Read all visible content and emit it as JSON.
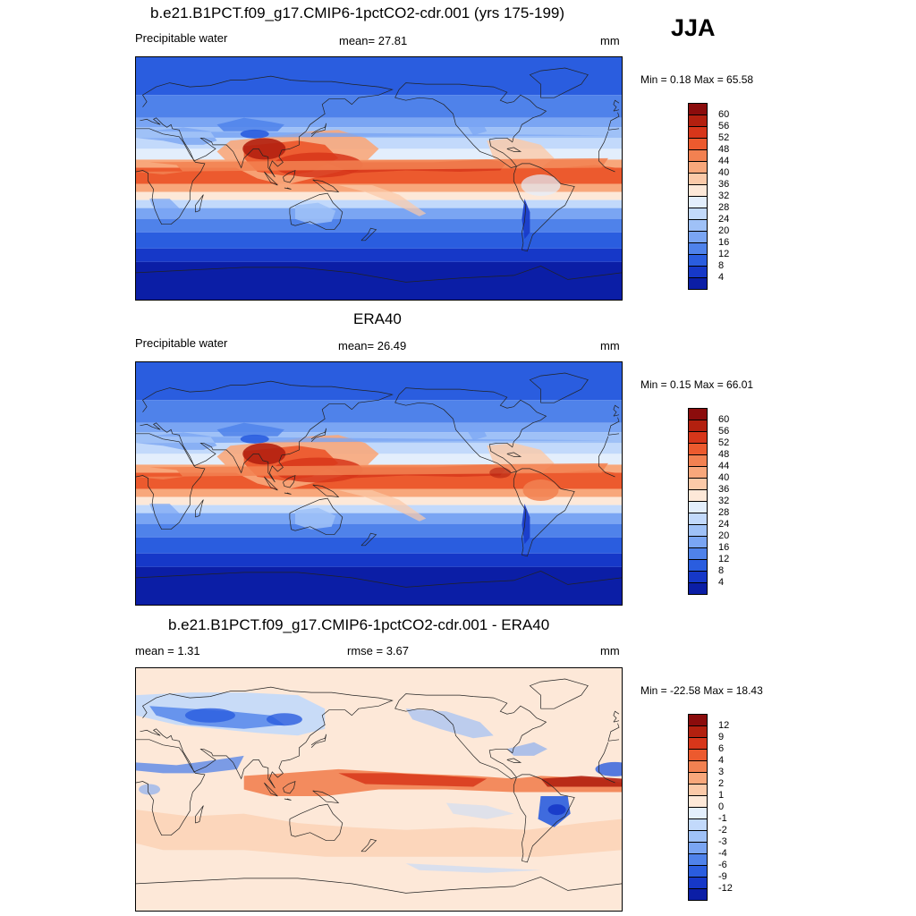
{
  "season": "JJA",
  "panels": [
    {
      "id": "model",
      "title": "b.e21.B1PCT.f09_g17.CMIP6-1pctCO2-cdr.001 (yrs 175-199)",
      "left_label": "Precipitable water",
      "center_label": "mean=  27.81",
      "right_label": "mm",
      "minmax": "Min =   0.18 Max =  65.58",
      "colorbar": {
        "labels": [
          "60",
          "56",
          "52",
          "48",
          "44",
          "40",
          "36",
          "32",
          "28",
          "24",
          "20",
          "16",
          "12",
          "8",
          "4"
        ],
        "colors": [
          "#8b0c0c",
          "#b3200f",
          "#d7361a",
          "#ec5a2e",
          "#f28151",
          "#f8a77b",
          "#fbc9a8",
          "#fde8d8",
          "#e3eefc",
          "#c2d9fb",
          "#9fc1f7",
          "#7aa5f3",
          "#4f82ea",
          "#2a5ddf",
          "#1638c8",
          "#0b1ea6"
        ]
      }
    },
    {
      "id": "obs",
      "title": "ERA40",
      "left_label": "Precipitable water",
      "center_label": "mean=  26.49",
      "right_label": "mm",
      "minmax": "Min =   0.15 Max =  66.01",
      "colorbar": {
        "labels": [
          "60",
          "56",
          "52",
          "48",
          "44",
          "40",
          "36",
          "32",
          "28",
          "24",
          "20",
          "16",
          "12",
          "8",
          "4"
        ],
        "colors": [
          "#8b0c0c",
          "#b3200f",
          "#d7361a",
          "#ec5a2e",
          "#f28151",
          "#f8a77b",
          "#fbc9a8",
          "#fde8d8",
          "#e3eefc",
          "#c2d9fb",
          "#9fc1f7",
          "#7aa5f3",
          "#4f82ea",
          "#2a5ddf",
          "#1638c8",
          "#0b1ea6"
        ]
      }
    },
    {
      "id": "diff",
      "title": "b.e21.B1PCT.f09_g17.CMIP6-1pctCO2-cdr.001 - ERA40",
      "left_label": "mean =   1.31",
      "center_label": "rmse =   3.67",
      "right_label": "mm",
      "minmax": "Min = -22.58 Max =  18.43",
      "colorbar": {
        "labels": [
          "12",
          "9",
          "6",
          "4",
          "3",
          "2",
          "1",
          "0",
          "-1",
          "-2",
          "-3",
          "-4",
          "-6",
          "-9",
          "-12"
        ],
        "colors": [
          "#8b0c0c",
          "#b3200f",
          "#d7361a",
          "#ec5a2e",
          "#f28151",
          "#f8a77b",
          "#fbc9a8",
          "#fde8d8",
          "#e3eefc",
          "#c2d9fb",
          "#9fc1f7",
          "#7aa5f3",
          "#4f82ea",
          "#2a5ddf",
          "#1638c8",
          "#0b1ea6"
        ]
      }
    }
  ]
}
